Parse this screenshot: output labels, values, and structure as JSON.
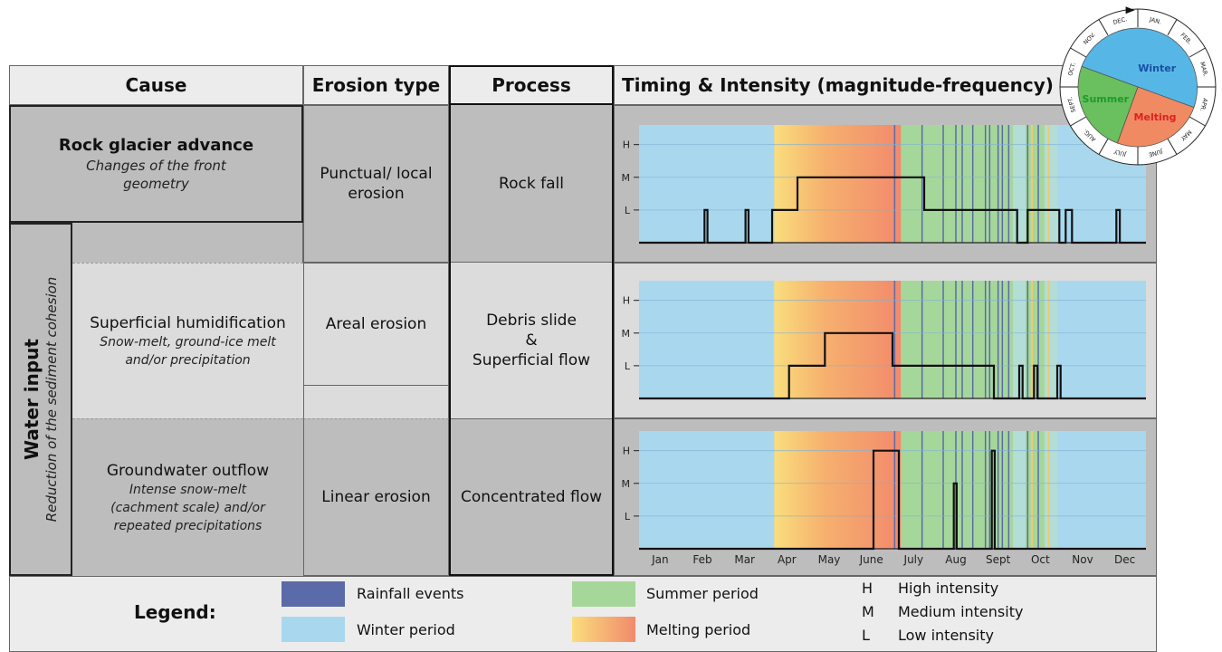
{
  "headers": {
    "cause": "Cause",
    "erosion_type": "Erosion type",
    "process": "Process",
    "timing": "Timing & Intensity (magnitude-frequency)"
  },
  "causes": {
    "rock_glacier_title": "Rock glacier advance",
    "rock_glacier_sub": "Changes of the front geometry",
    "water_input_title": "Water input",
    "water_input_sub": "Reduction of the sediment cohesion",
    "superficial_title": "Superficial humidification",
    "superficial_sub": "Snow-melt, ground-ice melt and/or precipitation",
    "groundwater_title": "Groundwater outflow",
    "groundwater_sub": "Intense snow-melt (cachment scale) and/or repeated precipitations"
  },
  "erosion_types": {
    "punctual": "Punctual/ local erosion",
    "areal": "Areal erosion",
    "linear": "Linear erosion"
  },
  "processes": {
    "rock_fall": "Rock fall",
    "debris_slide_1": "Debris slide",
    "debris_slide_amp": "&",
    "debris_slide_2": "Superficial flow",
    "concentrated": "Concentrated flow"
  },
  "intensity_labels": [
    "H",
    "M",
    "L"
  ],
  "months": [
    "Jan",
    "Feb",
    "Mar",
    "Apr",
    "May",
    "June",
    "July",
    "Aug",
    "Sept",
    "Oct",
    "Nov",
    "Dec"
  ],
  "colors": {
    "winter": "#a9d8ee",
    "summer": "#a6d79a",
    "melting_start": "#f9de7d",
    "melting_end": "#f28a6c",
    "rainfall": "#5b6aa8",
    "line": "#111111"
  },
  "chart_data": [
    {
      "type": "line",
      "process": "Rock fall",
      "y_levels": [
        "0",
        "L",
        "M",
        "H"
      ],
      "x_unit": "month (0 = Jan 1, 12 = Dec 31)",
      "x": [
        0,
        1.55,
        1.55,
        1.62,
        1.62,
        2.52,
        2.52,
        2.59,
        2.59,
        3.15,
        3.15,
        3.75,
        3.75,
        6.75,
        6.75,
        8.95,
        8.95,
        9.2,
        9.2,
        9.95,
        9.95,
        10.1,
        10.1,
        10.25,
        10.25,
        11.3,
        11.3,
        11.38,
        11.38,
        12
      ],
      "y": [
        0,
        0,
        1,
        1,
        0,
        0,
        1,
        1,
        0,
        0,
        1,
        1,
        2,
        2,
        1,
        1,
        0,
        0,
        1,
        1,
        0,
        0,
        1,
        1,
        0,
        0,
        1,
        1,
        0,
        0
      ]
    },
    {
      "type": "line",
      "process": "Debris slide & Superficial flow",
      "y_levels": [
        "0",
        "L",
        "M",
        "H"
      ],
      "x": [
        0,
        3.55,
        3.55,
        4.4,
        4.4,
        6.0,
        6.0,
        8.4,
        8.4,
        9.0,
        9.0,
        9.08,
        9.08,
        9.35,
        9.35,
        9.43,
        9.43,
        9.9,
        9.9,
        9.98,
        9.98,
        12
      ],
      "y": [
        0,
        0,
        1,
        1,
        2,
        2,
        1,
        1,
        0,
        0,
        1,
        1,
        0,
        0,
        1,
        1,
        0,
        0,
        1,
        1,
        0,
        0
      ]
    },
    {
      "type": "line",
      "process": "Concentrated flow",
      "y_levels": [
        "0",
        "L",
        "M",
        "H"
      ],
      "x": [
        0,
        5.55,
        5.55,
        6.15,
        6.15,
        7.45,
        7.45,
        7.52,
        7.52,
        8.35,
        8.35,
        8.42,
        8.42,
        12
      ],
      "y": [
        0,
        0,
        3,
        3,
        0,
        0,
        2,
        2,
        0,
        0,
        3,
        3,
        0,
        0
      ]
    }
  ],
  "seasons_bands": {
    "winter_1_end": 3.2,
    "melting_end": 6.2,
    "summer_end": 9.9,
    "rainfall_x": [
      6.05,
      6.7,
      7.2,
      7.5,
      7.65,
      7.9,
      8.2,
      8.3,
      8.5,
      8.6,
      8.75,
      9.2,
      9.45
    ],
    "thin_yellow_x": [
      9.3,
      9.7
    ]
  },
  "wheel": {
    "seasons": [
      "Winter",
      "Melting",
      "Summer"
    ],
    "season_colors": [
      "#56b7e6",
      "#f08a62",
      "#6abf5e"
    ],
    "label_colors": [
      "#1a4fa3",
      "#e02020",
      "#1e9a2a"
    ],
    "months": [
      "JAN.",
      "FEB.",
      "MAR.",
      "APR.",
      "MAY",
      "JUNE",
      "JULY",
      "AUG.",
      "SEPT.",
      "OCT.",
      "NOV.",
      "DEC."
    ]
  },
  "legend": {
    "title": "Legend:",
    "rainfall": "Rainfall events",
    "winter": "Winter period",
    "summer": "Summer period",
    "melting": "Melting period",
    "H": "H",
    "M": "M",
    "L": "L",
    "high": "High intensity",
    "medium": "Medium intensity",
    "low": "Low intensity"
  }
}
